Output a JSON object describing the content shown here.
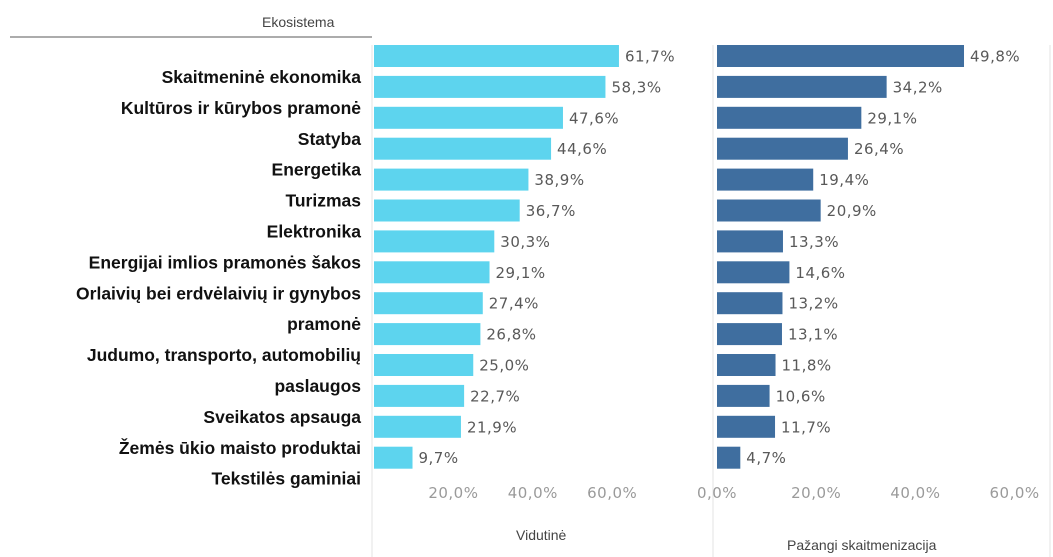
{
  "header": {
    "ecosystem_label": "Ekosistema"
  },
  "chart_data": {
    "type": "bar",
    "orientation": "horizontal",
    "categories": [
      "Skaitmeninė ekonomika",
      "Kultūros ir kūrybos pramonė",
      "Statyba",
      "Energetika",
      "Turizmas",
      "Elektronika",
      "Energijai imlios pramonės šakos",
      "Orlaivių bei erdvėlaivių ir gynybos",
      "pramonė",
      "Judumo, transporto, automobilių",
      "paslaugos",
      "Sveikatos apsauga",
      "Žemės ūkio maisto produktai",
      "Tekstilės gaminiai"
    ],
    "panels": [
      {
        "name": "Vidutinė",
        "color": "#5dd4ee",
        "values": [
          61.7,
          58.3,
          47.6,
          44.6,
          38.9,
          36.7,
          30.3,
          29.1,
          27.4,
          26.8,
          25.0,
          22.7,
          21.9,
          9.7
        ],
        "value_labels": [
          "61,7%",
          "58,3%",
          "47,6%",
          "44,6%",
          "38,9%",
          "36,7%",
          "30,3%",
          "29,1%",
          "27,4%",
          "26,8%",
          "25,0%",
          "22,7%",
          "21,9%",
          "9,7%"
        ],
        "xlim": [
          0,
          70
        ],
        "ticks": [
          20,
          40,
          60
        ],
        "tick_labels": [
          "20,0%",
          "40,0%",
          "60,0%"
        ]
      },
      {
        "name": "Pažangi skaitmenizacija",
        "color": "#3f6e9f",
        "values": [
          49.8,
          34.2,
          29.1,
          26.4,
          19.4,
          20.9,
          13.3,
          14.6,
          13.2,
          13.1,
          11.8,
          10.6,
          11.7,
          4.7
        ],
        "value_labels": [
          "49,8%",
          "34,2%",
          "29,1%",
          "26,4%",
          "19,4%",
          "20,9%",
          "13,3%",
          "14,6%",
          "13,2%",
          "13,1%",
          "11,8%",
          "10,6%",
          "11,7%",
          "4,7%"
        ],
        "xlim": [
          0,
          60
        ],
        "ticks": [
          0,
          20,
          40,
          60
        ],
        "tick_labels": [
          "0,0%",
          "20,0%",
          "40,0%",
          "60,0%"
        ]
      }
    ],
    "grid": false
  }
}
